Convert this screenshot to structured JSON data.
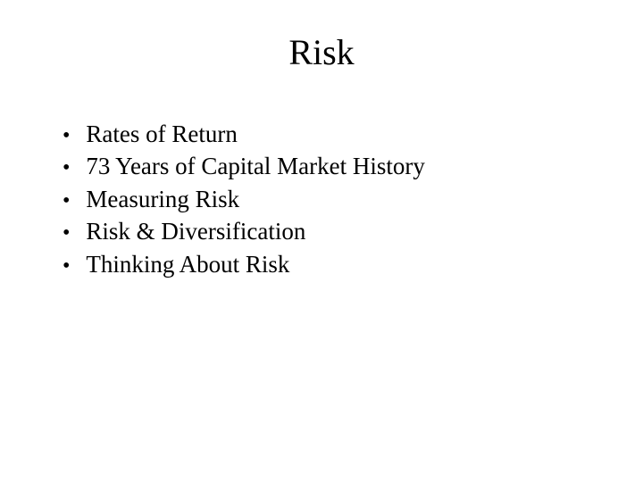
{
  "slide": {
    "title": "Risk",
    "title_fontsize": 40,
    "body_fontsize": 27,
    "background_color": "#ffffff",
    "text_color": "#000000",
    "font_family": "Times New Roman",
    "bullets": [
      "Rates of Return",
      "73 Years of Capital Market History",
      "Measuring Risk",
      "Risk & Diversification",
      "Thinking About Risk"
    ]
  }
}
